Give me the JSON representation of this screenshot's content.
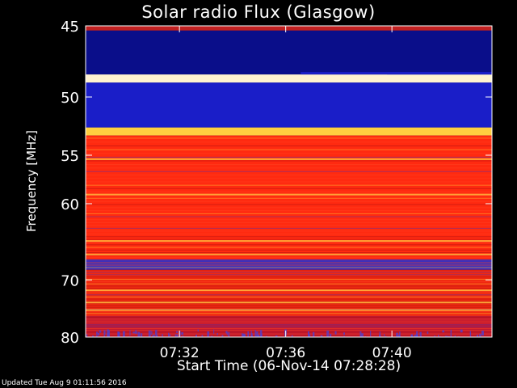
{
  "chart_data": {
    "type": "heatmap",
    "title": "Solar radio Flux (Glasgow)",
    "xlabel": "Start Time (06-Nov-14 07:28:28)",
    "ylabel": "Frequency [MHz]",
    "x_ticks": [
      "07:32",
      "07:36",
      "07:40"
    ],
    "x_tick_minutes": [
      3.533,
      7.533,
      11.533
    ],
    "x_range_minutes": [
      0,
      15.3
    ],
    "y_ticks": [
      45,
      50,
      55,
      60,
      70,
      80
    ],
    "y_range_mhz": [
      45,
      80
    ],
    "y_scale": "reciprocal",
    "segment_boundaries_minutes": [
      8.1,
      11.35
    ],
    "bands": [
      {
        "freq_mhz": [
          45.0,
          45.3
        ],
        "color": "#c02020"
      },
      {
        "freq_mhz": [
          45.3,
          48.3
        ],
        "color": "#0a0e8a"
      },
      {
        "freq_mhz": [
          48.3,
          48.9
        ],
        "color": "#fff3d0"
      },
      {
        "freq_mhz": [
          48.9,
          52.5
        ],
        "color": "#1a1ec8"
      },
      {
        "freq_mhz": [
          52.5,
          53.2
        ],
        "color": "#ffd040"
      },
      {
        "freq_mhz": [
          53.2,
          67.0
        ],
        "color": "#ff2a10"
      },
      {
        "freq_mhz": [
          67.0,
          68.5
        ],
        "color": "#4030b8"
      },
      {
        "freq_mhz": [
          68.5,
          76.0
        ],
        "color": "#f02810"
      },
      {
        "freq_mhz": [
          76.0,
          80.0
        ],
        "color": "#c01830"
      }
    ],
    "colors": {
      "background": "#000000",
      "axis": "#ffffff"
    }
  },
  "footer": {
    "updated": "Updated Tue Aug  9 01:11:56 2016"
  }
}
